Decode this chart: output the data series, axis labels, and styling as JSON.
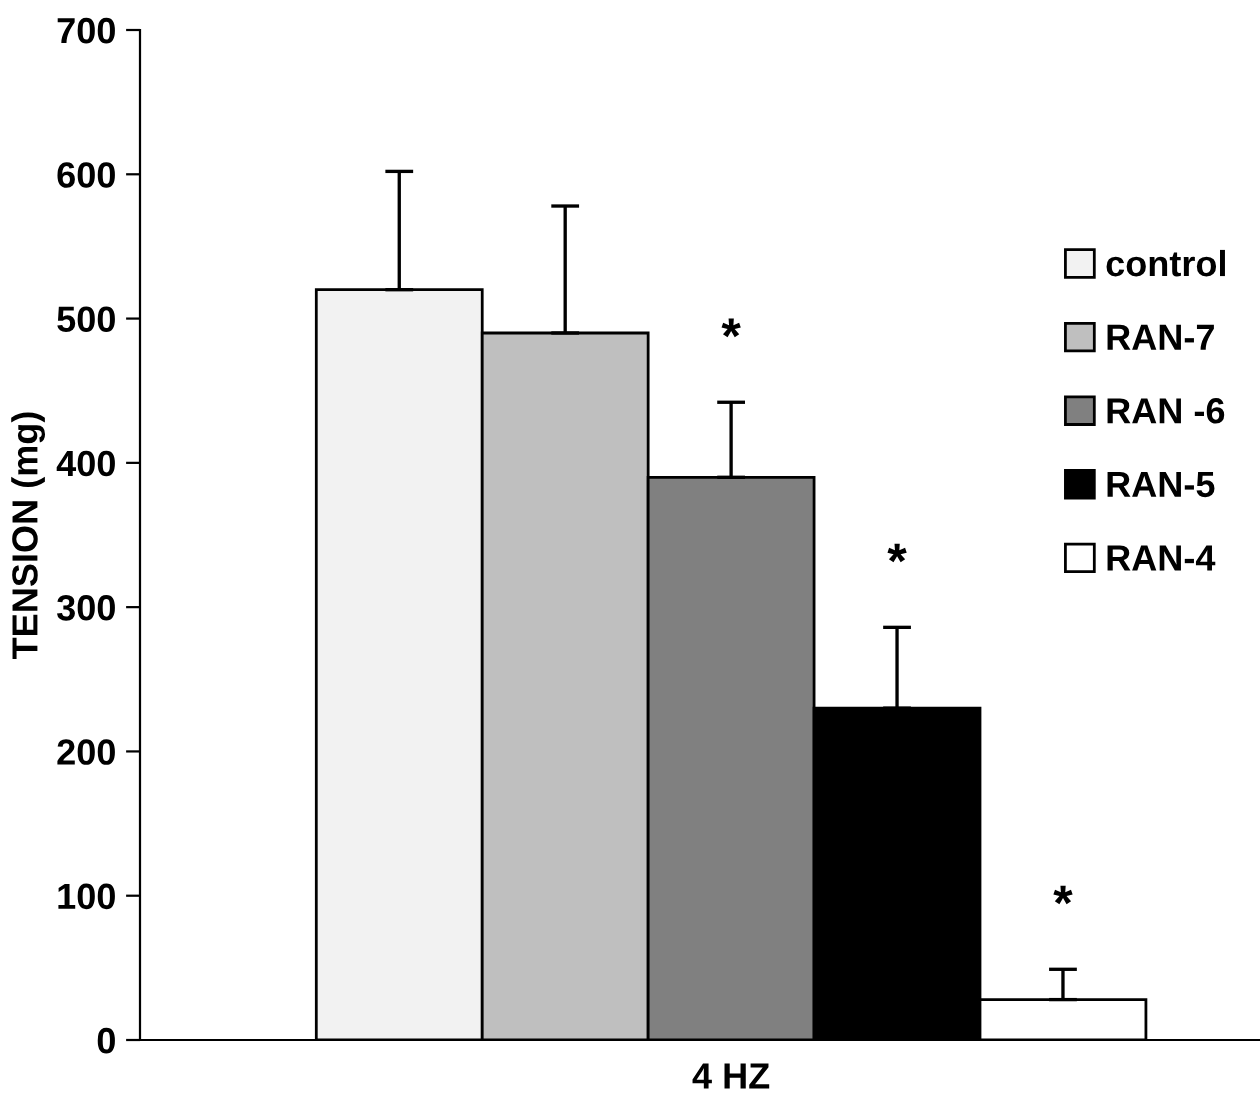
{
  "chart_data": {
    "type": "bar",
    "ylabel": "TENSION (mg)",
    "categories": [
      "4 HZ"
    ],
    "series": [
      {
        "name": "control",
        "color": "#f2f2f2",
        "values": [
          520
        ],
        "errors": [
          [
            520,
            602
          ]
        ]
      },
      {
        "name": "RAN-7",
        "color": "#bfbfbf",
        "values": [
          490
        ],
        "errors": [
          [
            490,
            578
          ]
        ]
      },
      {
        "name": "RAN -6",
        "color": "#808080",
        "values": [
          390
        ],
        "errors": [
          [
            390,
            442
          ]
        ]
      },
      {
        "name": "RAN-5",
        "color": "#000000",
        "values": [
          230
        ],
        "errors": [
          [
            230,
            286
          ]
        ]
      },
      {
        "name": "RAN-4",
        "color": "#ffffff",
        "values": [
          28
        ],
        "errors": [
          [
            28,
            49
          ]
        ]
      }
    ],
    "annotations": [
      "*",
      "*",
      "*"
    ],
    "ylim": [
      0,
      700
    ],
    "yticks": [
      0,
      100,
      200,
      300,
      400,
      500,
      600,
      700
    ],
    "grid": false,
    "legend": "right"
  }
}
